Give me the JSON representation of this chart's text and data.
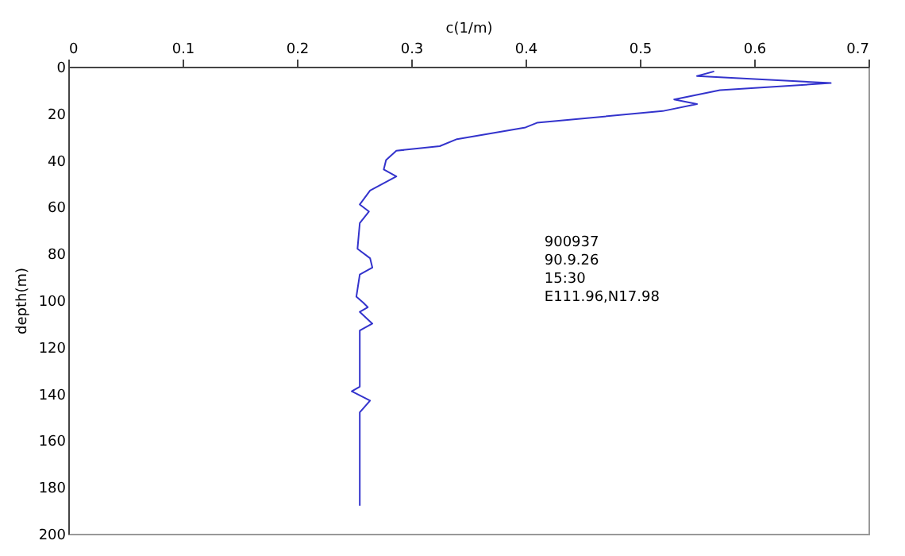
{
  "chart_data": {
    "type": "line",
    "xlabel": "c(1/m)",
    "ylabel": "depth(m)",
    "xlim": [
      0,
      0.7
    ],
    "xticks": [
      0,
      0.1,
      0.2,
      0.3,
      0.4,
      0.5,
      0.6,
      0.7
    ],
    "ylim": [
      200,
      0
    ],
    "yticks": [
      0,
      20,
      40,
      60,
      80,
      100,
      120,
      140,
      160,
      180,
      200
    ],
    "grid": false,
    "annotations": [
      "900937",
      "90.9.26",
      "15:30",
      "E111.96,N17.98"
    ],
    "series": [
      {
        "color": "#3333cc",
        "x": [
          0.565,
          0.55,
          0.667,
          0.57,
          0.53,
          0.55,
          0.52,
          0.41,
          0.4,
          0.34,
          0.325,
          0.305,
          0.287,
          0.278,
          0.276,
          0.287,
          0.264,
          0.255,
          0.263,
          0.255,
          0.253,
          0.264,
          0.266,
          0.255,
          0.252,
          0.258,
          0.262,
          0.255,
          0.266,
          0.255,
          0.255,
          0.248,
          0.264,
          0.255,
          0.255
        ],
        "values": [
          2,
          4,
          7,
          10,
          14,
          16,
          19,
          24,
          26,
          31,
          34,
          35,
          36,
          40,
          44,
          47,
          53,
          59,
          62,
          67,
          78,
          82,
          86,
          89,
          98.5,
          101,
          103,
          105,
          110,
          113,
          137,
          139,
          143,
          148,
          188
        ]
      }
    ]
  }
}
